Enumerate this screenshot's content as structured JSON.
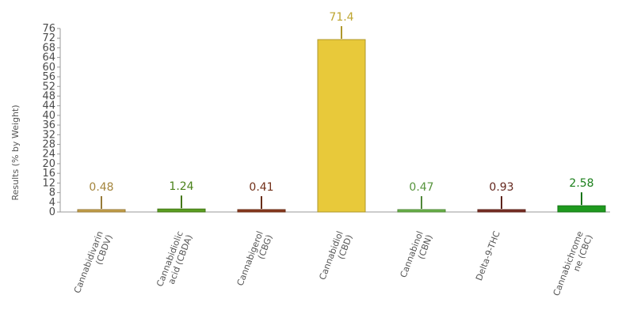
{
  "chart_data": {
    "type": "bar",
    "title": "",
    "xlabel": "",
    "ylabel": "Results (% by Weight)",
    "ylim": [
      0,
      76
    ],
    "yticks": [
      0,
      4,
      8,
      12,
      16,
      20,
      24,
      28,
      32,
      36,
      40,
      44,
      48,
      52,
      56,
      60,
      64,
      68,
      72,
      76
    ],
    "grid": false,
    "categories": [
      "Cannabidivarin (CBDV)",
      "Cannabidiolic acid (CBDA)",
      "Cannabigerol (CBG)",
      "Cannabidiol (CBD)",
      "Cannabinol (CBN)",
      "Delta-9-THC",
      "Cannabichromene (CBC)"
    ],
    "category_label_lines": [
      [
        "Cannabidivarin",
        "(CBDV)"
      ],
      [
        "Cannabidiolic",
        "acid (CBDA)"
      ],
      [
        "Cannabigerol",
        "(CBG)"
      ],
      [
        "Cannabidiol",
        "(CBD)"
      ],
      [
        "Cannabinol",
        "(CBN)"
      ],
      [
        "Delta-9-THC"
      ],
      [
        "Cannabichrome",
        "ne (CBC)"
      ]
    ],
    "values": [
      0.48,
      1.24,
      0.41,
      71.4,
      0.47,
      0.93,
      2.58
    ],
    "value_labels": [
      "0.48",
      "1.24",
      "0.41",
      "71.4",
      "0.47",
      "0.93",
      "2.58"
    ],
    "colors": [
      "#c8a24a",
      "#5a9e20",
      "#8b3a1e",
      "#e8c93a",
      "#6ab44a",
      "#7a2f24",
      "#1e9a1e"
    ]
  }
}
